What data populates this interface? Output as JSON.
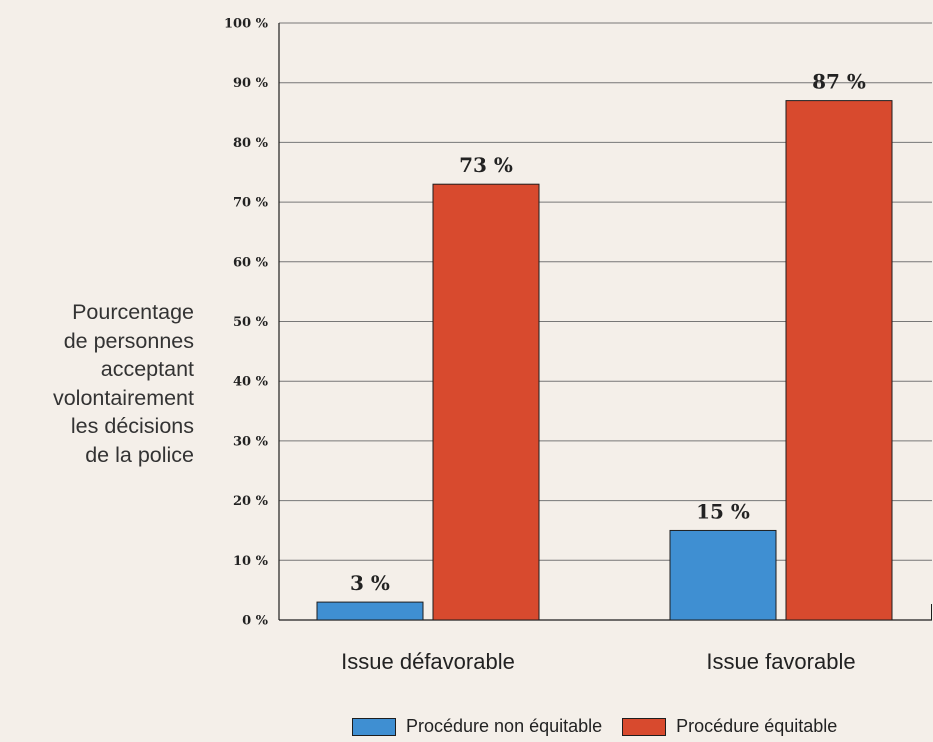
{
  "chart_data": {
    "type": "bar",
    "categories": [
      "Issue défavorable",
      "Issue favorable"
    ],
    "series": [
      {
        "name": "Procédure non équitable",
        "values": [
          3,
          15
        ],
        "labels": [
          "3 %",
          "15 %"
        ],
        "color": "#3f8fd2"
      },
      {
        "name": "Procédure équitable",
        "values": [
          73,
          87
        ],
        "labels": [
          "73 %",
          "87 %"
        ],
        "color": "#d84a2e"
      }
    ],
    "ylabel_lines": [
      "Pourcentage",
      "de personnes",
      "acceptant",
      "volontairement",
      "les décisions",
      "de la police"
    ],
    "ylim": [
      0,
      100
    ],
    "yticks": [
      0,
      10,
      20,
      30,
      40,
      50,
      60,
      70,
      80,
      90,
      100
    ],
    "ytick_labels": [
      "0 %",
      "10 %",
      "20 %",
      "30 %",
      "40 %",
      "50 %",
      "60 %",
      "70 %",
      "80 %",
      "90 %",
      "100 %"
    ],
    "grid": true,
    "legend_position": "bottom-right"
  }
}
